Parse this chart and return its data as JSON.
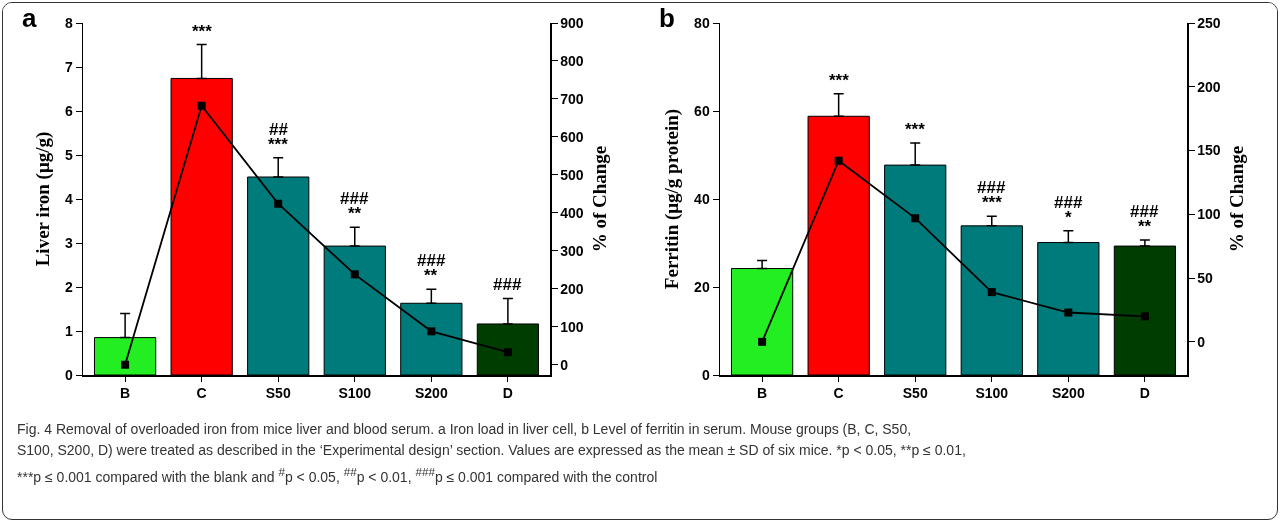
{
  "chart_data": [
    {
      "type": "bar",
      "title": "a",
      "categories": [
        "B",
        "C",
        "S50",
        "S100",
        "S200",
        "D"
      ],
      "ylabel": "Liver iron (μg/g)",
      "y2label": "% of Change",
      "ylim": [
        0,
        8
      ],
      "yticks": [
        0,
        1,
        2,
        3,
        4,
        5,
        6,
        7,
        8
      ],
      "y2lim": [
        -27,
        900
      ],
      "y2ticks": [
        0,
        100,
        200,
        300,
        400,
        500,
        600,
        700,
        800,
        900
      ],
      "series": [
        {
          "colors": [
            "#22ee22",
            "#ff0000",
            "#007b7b",
            "#007b7b",
            "#007b7b",
            "#003d00"
          ],
          "values": [
            0.85,
            6.74,
            4.5,
            2.93,
            1.63,
            1.16
          ],
          "errors": [
            [
              0.85,
              1.4
            ],
            [
              6.74,
              7.51
            ],
            [
              4.5,
              4.94
            ],
            [
              2.93,
              3.36
            ],
            [
              1.63,
              1.95
            ],
            [
              1.16,
              1.74
            ]
          ]
        },
        {
          "type": "line",
          "axis": "y2",
          "color": "#000000",
          "marker": "square",
          "line_style": "solid",
          "values": [
            0,
            682,
            424,
            238,
            88,
            33
          ]
        }
      ],
      "annotations": [
        {
          "text": "***",
          "x": "C",
          "y": 6.74
        },
        {
          "text": "***",
          "x": "S50",
          "y": 4.5
        },
        {
          "text": "##",
          "x": "S50",
          "y": 4.5
        },
        {
          "text": "**",
          "x": "S100",
          "y": 2.93
        },
        {
          "text": "###",
          "x": "S100",
          "y": 2.93
        },
        {
          "text": "**",
          "x": "S200",
          "y": 1.63
        },
        {
          "text": "###",
          "x": "S200",
          "y": 1.63
        },
        {
          "text": "###",
          "x": "D",
          "y": 1.16
        }
      ]
    },
    {
      "type": "bar",
      "title": "b",
      "categories": [
        "B",
        "C",
        "S50",
        "S100",
        "S200",
        "D"
      ],
      "ylabel": "Ferritin (μg/g protein)",
      "y2label": "% of Change",
      "ylim": [
        0,
        80
      ],
      "yticks": [
        0,
        20,
        40,
        60,
        80
      ],
      "y2lim": [
        -26,
        250
      ],
      "y2ticks": [
        0,
        50,
        100,
        150,
        200,
        250
      ],
      "series": [
        {
          "colors": [
            "#22ee22",
            "#ff0000",
            "#007b7b",
            "#007b7b",
            "#007b7b",
            "#003d00"
          ],
          "values": [
            24.2,
            58.8,
            47.7,
            33.9,
            30.1,
            29.3
          ],
          "errors": [
            [
              24.2,
              26.0
            ],
            [
              58.8,
              63.9
            ],
            [
              47.7,
              52.7
            ],
            [
              33.9,
              36.1
            ],
            [
              30.1,
              32.8
            ],
            [
              29.3,
              30.7
            ]
          ]
        },
        {
          "type": "line",
          "axis": "y2",
          "color": "#000000",
          "marker": "square",
          "line_style": "solid",
          "values": [
            0,
            142,
            97,
            39,
            23,
            20
          ]
        }
      ],
      "annotations": [
        {
          "text": "***",
          "x": "C",
          "y": 58.8
        },
        {
          "text": "***",
          "x": "S50",
          "y": 47.7
        },
        {
          "text": "***",
          "x": "S100",
          "y": 33.9
        },
        {
          "text": "###",
          "x": "S100",
          "y": 33.9
        },
        {
          "text": "*",
          "x": "S200",
          "y": 30.1
        },
        {
          "text": "###",
          "x": "S200",
          "y": 30.1
        },
        {
          "text": "**",
          "x": "D",
          "y": 29.3
        },
        {
          "text": "###",
          "x": "D",
          "y": 29.3
        }
      ]
    },
    {
      "type": "other",
      "annotations": [
        "Fig. 4 Removal of overloaded iron from mice liver and blood serum. a Iron load in liver cell, b Level of ferritin in serum. Mouse groups (B, C, S50,",
        "S100, S200, D) were treated as described in the ‘Experimental design’ section. Values are expressed as the mean ± SD of six mice. *p < 0.05,",
        "**p ≤ 0.01,",
        "***p ≤ 0.001 compared with the blank and $^{#}$p < 0.05, $^{##}$p < 0.01, $^{###}$p ≤ 0.001 compared with the control"
      ]
    }
  ]
}
